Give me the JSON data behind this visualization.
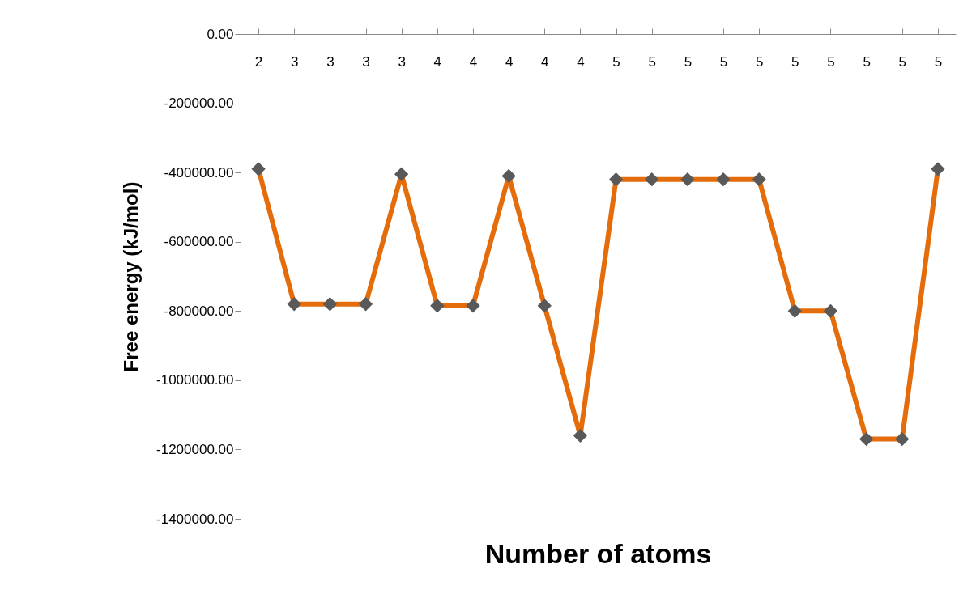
{
  "chart_data": {
    "type": "line",
    "xlabel": "Number of atoms",
    "ylabel": "Free energy (kJ/mol)",
    "categories": [
      "2",
      "3",
      "3",
      "3",
      "3",
      "4",
      "4",
      "4",
      "4",
      "4",
      "5",
      "5",
      "5",
      "5",
      "5",
      "5",
      "5",
      "5",
      "5",
      "5"
    ],
    "series": [
      {
        "color": "#e46c0a",
        "values": [
          -390000,
          -780000,
          -780000,
          -780000,
          -405000,
          -785000,
          -785000,
          -410000,
          -785000,
          -1160000,
          -420000,
          -420000,
          -420000,
          -420000,
          -420000,
          -800000,
          -800000,
          -1170000,
          -1170000,
          -390000
        ]
      }
    ],
    "ylim": [
      -1400000,
      0
    ],
    "yticks": [
      {
        "value": -1400000,
        "label": "-1400000.00"
      },
      {
        "value": -1200000,
        "label": "-1200000.00"
      },
      {
        "value": -1000000,
        "label": "-1000000.00"
      },
      {
        "value": -800000,
        "label": "-800000.00"
      },
      {
        "value": -600000,
        "label": "-600000.00"
      },
      {
        "value": -400000,
        "label": "-400000.00"
      },
      {
        "value": -200000,
        "label": "-200000.00"
      },
      {
        "value": 0,
        "label": "0.00"
      }
    ],
    "marker": "diamond",
    "grid": false
  }
}
